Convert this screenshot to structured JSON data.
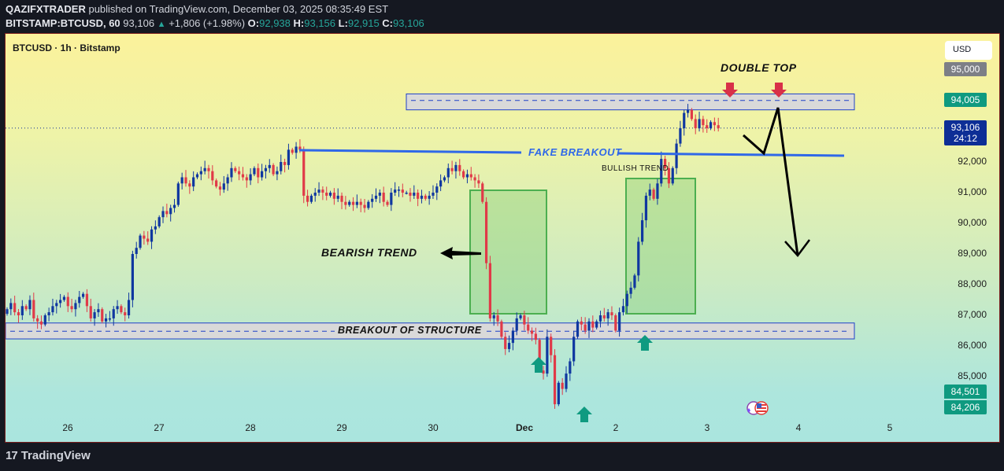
{
  "header": {
    "publisher": "QAZIFXTRADER",
    "published_text": "published on TradingView.com, December 03, 2025 08:35:49 EST",
    "symbol_full": "BITSTAMP:BTCUSD, 60",
    "last_price": "93,106",
    "change": "+1,806 (+1.98%)",
    "change_arrow": "▲",
    "open_label": "O:",
    "open": "92,938",
    "high_label": "H:",
    "high": "93,156",
    "low_label": "L:",
    "low": "92,915",
    "close_label": "C:",
    "close": "93,106"
  },
  "chart": {
    "symbol_label": "BTCUSD · 1h · Bitstamp",
    "currency_button": "USD"
  },
  "footer": {
    "brand": "TradingView",
    "logo_mark": "17"
  },
  "colors": {
    "up_candle": "#0f37a0",
    "down_candle": "#e03a48",
    "zone_fill": "#d9d9d9",
    "zone_border": "#1e40c8",
    "trend_box_fill": "rgba(120,200,110,0.35)",
    "trend_box_border": "#4caf50",
    "fake_breakout_line": "#2f68e8",
    "red_arrow": "#d83048",
    "green_arrow": "#0f9a80",
    "badge_gray": "#7d7f86",
    "badge_green": "#0f9a80",
    "badge_blue": "#0d2e96"
  },
  "chart_data": {
    "type": "candlestick",
    "title": "BTCUSD · 1h · Bitstamp",
    "interval": "1h",
    "xlabel": "",
    "ylabel": "USD",
    "ylim": [
      83700,
      96200
    ],
    "grid": false,
    "price_axis": {
      "ticks": [
        "92,000",
        "91,000",
        "90,000",
        "89,000",
        "88,000",
        "87,000",
        "86,000",
        "85,000"
      ],
      "tick_values": [
        92000,
        91000,
        90000,
        89000,
        88000,
        87000,
        86000,
        85000
      ],
      "badges": [
        {
          "label": "95,000",
          "value": 95000,
          "style": "gray"
        },
        {
          "label": "94,005",
          "value": 94005,
          "style": "green"
        },
        {
          "label": "93,106",
          "sub": "24:12",
          "value": 93106,
          "style": "blue"
        },
        {
          "label": "84,501",
          "value": 84501,
          "style": "green"
        },
        {
          "label": "84,206",
          "value": 84206,
          "style": "green"
        }
      ]
    },
    "time_axis": {
      "ticks": [
        "26",
        "27",
        "28",
        "29",
        "30",
        "Dec",
        "2",
        "3",
        "4",
        "5"
      ],
      "bold": [
        false,
        false,
        false,
        false,
        false,
        true,
        false,
        false,
        false,
        false
      ]
    },
    "annotations": {
      "double_top": "DOUBLE TOP",
      "fake_breakout": "FAKE BREAKOUT",
      "bullish_trend": "BULLISH TREND",
      "bearish_trend": "BEARISH TREND",
      "breakout_of_structure": "BREAKOUT OF STRUCTURE"
    },
    "zones": [
      {
        "name": "resistance",
        "top": 94220,
        "bottom": 93700,
        "mid": 94005
      },
      {
        "name": "support",
        "top": 86750,
        "bottom": 86230,
        "mid": 86480
      }
    ],
    "fake_breakout_line": {
      "start_price": 92450,
      "end_price": 92200
    },
    "close_path": [
      87200,
      87400,
      87100,
      87000,
      87300,
      87200,
      87500,
      86900,
      86800,
      86700,
      87000,
      87100,
      87300,
      87400,
      87500,
      87600,
      87300,
      87200,
      87400,
      87600,
      87700,
      87300,
      86900,
      87100,
      87200,
      86800,
      86900,
      86900,
      87200,
      87300,
      87100,
      87000,
      87500,
      89000,
      89200,
      89600,
      89500,
      89400,
      89800,
      89900,
      90200,
      90400,
      90300,
      90500,
      90600,
      91300,
      91500,
      91300,
      91200,
      91500,
      91600,
      91700,
      91800,
      91700,
      91400,
      91200,
      91100,
      91300,
      91500,
      91800,
      91700,
      91600,
      91500,
      91400,
      91600,
      91800,
      91500,
      91700,
      91800,
      91900,
      91600,
      91700,
      92000,
      91900,
      92400,
      92300,
      92500,
      92400,
      90900,
      90700,
      90900,
      91000,
      91100,
      91000,
      90900,
      91000,
      90800,
      90900,
      90700,
      90600,
      90700,
      90600,
      90700,
      90600,
      90500,
      90700,
      90800,
      90900,
      91000,
      90700,
      90600,
      91000,
      91100,
      91100,
      91000,
      91000,
      90900,
      91000,
      90800,
      90900,
      90800,
      90900,
      91000,
      91200,
      91400,
      91500,
      91800,
      91700,
      91900,
      91700,
      91500,
      91600,
      91500,
      91400,
      91300,
      90700,
      88700,
      86900,
      87000,
      86800,
      86300,
      85900,
      86100,
      86500,
      86900,
      87000,
      86700,
      86500,
      86400,
      86200,
      85200,
      85100,
      86300,
      85700,
      84100,
      84800,
      84600,
      85100,
      85500,
      86300,
      86800,
      86700,
      86500,
      86800,
      86600,
      86800,
      87000,
      86900,
      87100,
      87000,
      86500,
      87100,
      87300,
      87700,
      87900,
      88300,
      89400,
      90100,
      90900,
      91100,
      90800,
      91300,
      92100,
      91800,
      91300,
      91800,
      92600,
      93100,
      93600,
      93700,
      93400,
      93100,
      93400,
      93200,
      93100,
      93300,
      93200,
      93100
    ]
  }
}
